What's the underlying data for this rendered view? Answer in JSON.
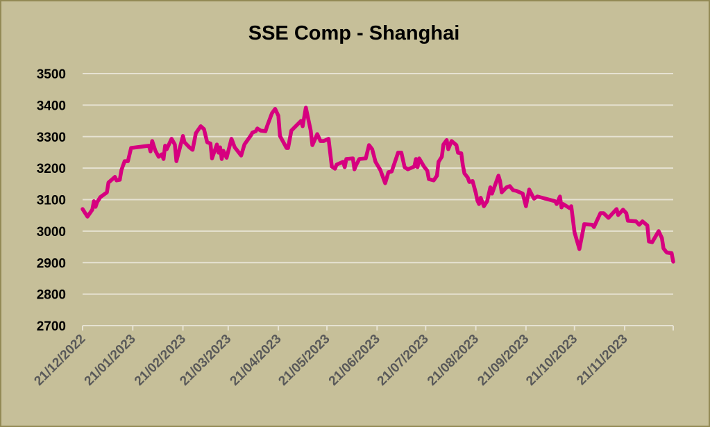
{
  "colors": {
    "background": "#c6bf99",
    "border": "#938a55",
    "line": "#d6007f",
    "grid": "#e6e2d2"
  },
  "chart_data": {
    "type": "line",
    "title": "SSE Comp - Shanghai",
    "xlabel": "",
    "ylabel": "",
    "ylim": [
      2700,
      3500
    ],
    "yticks": [
      2700,
      2800,
      2900,
      3000,
      3100,
      3200,
      3300,
      3400,
      3500
    ],
    "x_unit": "days since 21/12/2022",
    "xlim": [
      0,
      365
    ],
    "xticks": [
      {
        "day": 0,
        "label": "21/12/2022"
      },
      {
        "day": 31,
        "label": "21/01/2023"
      },
      {
        "day": 62,
        "label": "21/02/2023"
      },
      {
        "day": 90,
        "label": "21/03/2023"
      },
      {
        "day": 121,
        "label": "21/04/2023"
      },
      {
        "day": 151,
        "label": "21/05/2023"
      },
      {
        "day": 182,
        "label": "21/06/2023"
      },
      {
        "day": 212,
        "label": "21/07/2023"
      },
      {
        "day": 243,
        "label": "21/08/2023"
      },
      {
        "day": 274,
        "label": "21/09/2023"
      },
      {
        "day": 304,
        "label": "21/10/2023"
      },
      {
        "day": 335,
        "label": "21/11/2023"
      },
      {
        "day": 365,
        "label": ""
      }
    ],
    "grid": true,
    "legend": "none",
    "series": [
      {
        "name": "SSE Comp - Shanghai",
        "points": [
          [
            0,
            3070
          ],
          [
            3,
            3046
          ],
          [
            6,
            3068
          ],
          [
            7,
            3095
          ],
          [
            8,
            3077
          ],
          [
            9,
            3092
          ],
          [
            11,
            3108
          ],
          [
            15,
            3123
          ],
          [
            16,
            3154
          ],
          [
            20,
            3172
          ],
          [
            21,
            3161
          ],
          [
            23,
            3163
          ],
          [
            24,
            3194
          ],
          [
            26,
            3222
          ],
          [
            28,
            3222
          ],
          [
            30,
            3264
          ],
          [
            41,
            3271
          ],
          [
            42,
            3253
          ],
          [
            43,
            3286
          ],
          [
            45,
            3255
          ],
          [
            47,
            3236
          ],
          [
            49,
            3244
          ],
          [
            50,
            3229
          ],
          [
            51,
            3271
          ],
          [
            52,
            3260
          ],
          [
            55,
            3293
          ],
          [
            57,
            3275
          ],
          [
            58,
            3222
          ],
          [
            62,
            3302
          ],
          [
            63,
            3282
          ],
          [
            66,
            3266
          ],
          [
            68,
            3258
          ],
          [
            70,
            3311
          ],
          [
            73,
            3333
          ],
          [
            75,
            3324
          ],
          [
            77,
            3282
          ],
          [
            79,
            3278
          ],
          [
            80,
            3231
          ],
          [
            83,
            3275
          ],
          [
            84,
            3249
          ],
          [
            85,
            3266
          ],
          [
            86,
            3229
          ],
          [
            87,
            3255
          ],
          [
            89,
            3233
          ],
          [
            92,
            3293
          ],
          [
            94,
            3266
          ],
          [
            98,
            3240
          ],
          [
            100,
            3275
          ],
          [
            104,
            3304
          ],
          [
            105,
            3313
          ],
          [
            107,
            3317
          ],
          [
            108,
            3326
          ],
          [
            110,
            3319
          ],
          [
            113,
            3317
          ],
          [
            114,
            3333
          ],
          [
            117,
            3374
          ],
          [
            119,
            3388
          ],
          [
            121,
            3366
          ],
          [
            122,
            3302
          ],
          [
            126,
            3264
          ],
          [
            127,
            3264
          ],
          [
            129,
            3319
          ],
          [
            135,
            3350
          ],
          [
            136,
            3333
          ],
          [
            138,
            3392
          ],
          [
            141,
            3319
          ],
          [
            142,
            3273
          ],
          [
            145,
            3308
          ],
          [
            147,
            3286
          ],
          [
            149,
            3286
          ],
          [
            152,
            3293
          ],
          [
            154,
            3205
          ],
          [
            156,
            3198
          ],
          [
            157,
            3211
          ],
          [
            161,
            3220
          ],
          [
            162,
            3203
          ],
          [
            163,
            3229
          ],
          [
            167,
            3231
          ],
          [
            168,
            3196
          ],
          [
            169,
            3209
          ],
          [
            171,
            3229
          ],
          [
            175,
            3231
          ],
          [
            177,
            3273
          ],
          [
            179,
            3260
          ],
          [
            181,
            3220
          ],
          [
            184,
            3194
          ],
          [
            187,
            3152
          ],
          [
            189,
            3187
          ],
          [
            191,
            3189
          ],
          [
            195,
            3249
          ],
          [
            197,
            3249
          ],
          [
            199,
            3203
          ],
          [
            201,
            3196
          ],
          [
            205,
            3205
          ],
          [
            206,
            3229
          ],
          [
            207,
            3203
          ],
          [
            208,
            3231
          ],
          [
            211,
            3205
          ],
          [
            213,
            3192
          ],
          [
            214,
            3165
          ],
          [
            217,
            3161
          ],
          [
            219,
            3176
          ],
          [
            220,
            3220
          ],
          [
            222,
            3236
          ],
          [
            223,
            3275
          ],
          [
            225,
            3289
          ],
          [
            226,
            3260
          ],
          [
            228,
            3286
          ],
          [
            231,
            3273
          ],
          [
            232,
            3249
          ],
          [
            234,
            3247
          ],
          [
            235,
            3209
          ],
          [
            236,
            3183
          ],
          [
            238,
            3170
          ],
          [
            239,
            3156
          ],
          [
            241,
            3159
          ],
          [
            243,
            3121
          ],
          [
            244,
            3097
          ],
          [
            245,
            3086
          ],
          [
            246,
            3106
          ],
          [
            248,
            3079
          ],
          [
            250,
            3095
          ],
          [
            252,
            3139
          ],
          [
            253,
            3119
          ],
          [
            257,
            3176
          ],
          [
            258,
            3159
          ],
          [
            259,
            3123
          ],
          [
            262,
            3139
          ],
          [
            264,
            3143
          ],
          [
            266,
            3130
          ],
          [
            268,
            3128
          ],
          [
            272,
            3119
          ],
          [
            274,
            3079
          ],
          [
            276,
            3132
          ],
          [
            278,
            3112
          ],
          [
            279,
            3103
          ],
          [
            281,
            3110
          ],
          [
            292,
            3095
          ],
          [
            293,
            3086
          ],
          [
            295,
            3110
          ],
          [
            296,
            3075
          ],
          [
            297,
            3086
          ],
          [
            301,
            3073
          ],
          [
            302,
            3079
          ],
          [
            304,
            2996
          ],
          [
            307,
            2943
          ],
          [
            310,
            3022
          ],
          [
            315,
            3020
          ],
          [
            316,
            3013
          ],
          [
            320,
            3057
          ],
          [
            322,
            3057
          ],
          [
            325,
            3042
          ],
          [
            330,
            3070
          ],
          [
            331,
            3051
          ],
          [
            334,
            3068
          ],
          [
            336,
            3057
          ],
          [
            337,
            3033
          ],
          [
            342,
            3031
          ],
          [
            344,
            3020
          ],
          [
            346,
            3031
          ],
          [
            349,
            3018
          ],
          [
            350,
            2967
          ],
          [
            352,
            2965
          ],
          [
            356,
            3000
          ],
          [
            358,
            2978
          ],
          [
            359,
            2945
          ],
          [
            361,
            2932
          ],
          [
            364,
            2930
          ],
          [
            365,
            2903
          ]
        ]
      }
    ]
  }
}
